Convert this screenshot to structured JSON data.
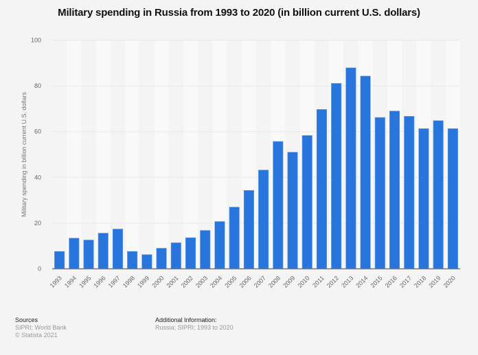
{
  "chart_data": {
    "type": "bar",
    "title": "Military spending in Russia from 1993 to 2020 (in billion current U.S. dollars)",
    "xlabel": "",
    "ylabel": "Military spending in billion current U.S. dollars",
    "ylim": [
      0,
      100
    ],
    "yticks": [
      0,
      20,
      40,
      60,
      80,
      100
    ],
    "grid": true,
    "bar_color": "#2876dd",
    "categories": [
      "1993",
      "1994",
      "1995",
      "1996",
      "1997",
      "1998",
      "1999",
      "2000",
      "2001",
      "2002",
      "2003",
      "2004",
      "2005",
      "2006",
      "2007",
      "2008",
      "2009",
      "2010",
      "2011",
      "2012",
      "2013",
      "2014",
      "2015",
      "2016",
      "2017",
      "2018",
      "2019",
      "2020"
    ],
    "values": [
      7.6,
      13.4,
      12.6,
      15.6,
      17.4,
      7.6,
      6.2,
      9.0,
      11.4,
      13.6,
      16.8,
      20.7,
      27.0,
      34.3,
      43.2,
      55.7,
      51.0,
      58.3,
      69.7,
      81.1,
      87.9,
      84.3,
      66.2,
      69.0,
      66.7,
      61.3,
      64.8,
      61.3
    ]
  },
  "footer": {
    "sources_heading": "Sources",
    "sources_text": "SIPRI; World Bank",
    "copyright": "© Statista 2021",
    "additional_heading": "Additional Information:",
    "additional_text": "Russia; SIPRI; 1993 to 2020"
  }
}
